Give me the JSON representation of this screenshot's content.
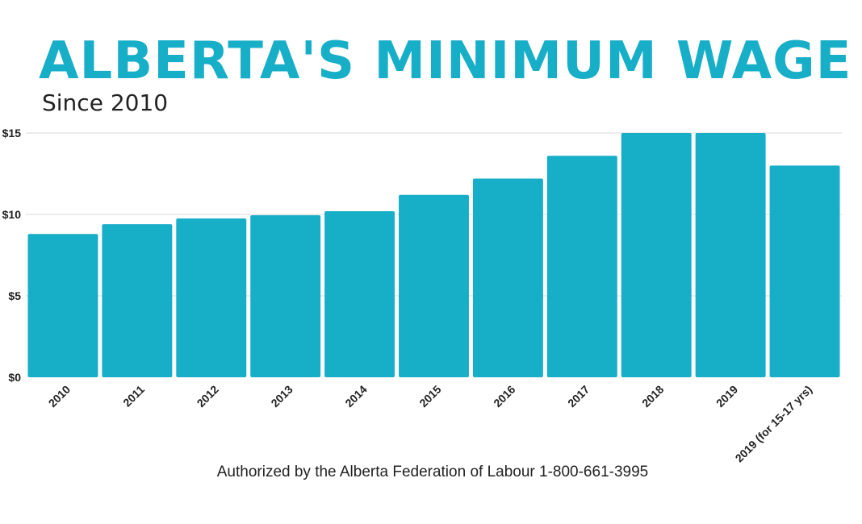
{
  "header": {
    "title": "ALBERTA'S MINIMUM WAGE",
    "subtitle": "Since 2010"
  },
  "footer": {
    "text": "Authorized by the Alberta Federation of Labour 1-800-661-3995"
  },
  "colors": {
    "accent": "#17AEC7",
    "bar": "#17AEC7",
    "grid": "#d8d8d8",
    "text": "#222222"
  },
  "chart_data": {
    "type": "bar",
    "title": "ALBERTA'S MINIMUM WAGE",
    "subtitle": "Since 2010",
    "categories": [
      "2010",
      "2011",
      "2012",
      "2013",
      "2014",
      "2015",
      "2016",
      "2017",
      "2018",
      "2019",
      "2019  (for 15-17 yrs)"
    ],
    "values": [
      8.8,
      9.4,
      9.75,
      9.95,
      10.2,
      11.2,
      12.2,
      13.6,
      15,
      15,
      13
    ],
    "xlabel": "",
    "ylabel": "",
    "ylim": [
      0,
      15
    ],
    "yticks": [
      0,
      5,
      10,
      15
    ],
    "ytick_labels": [
      "$0",
      "$5",
      "$10",
      "$15"
    ],
    "grid": true,
    "legend": "none"
  }
}
